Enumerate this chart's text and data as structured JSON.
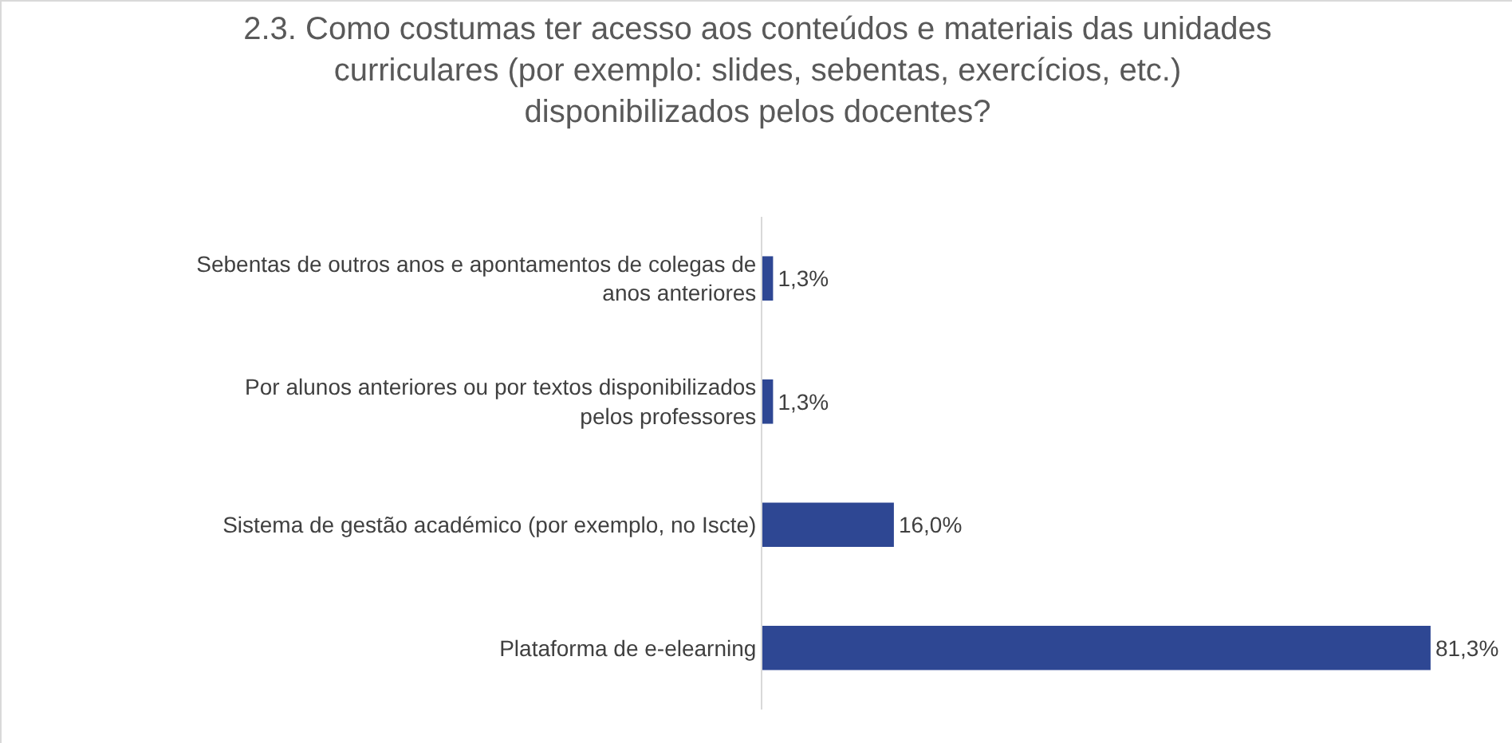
{
  "chart_data": {
    "type": "bar",
    "orientation": "horizontal",
    "title": "2.3. Como costumas ter acesso aos conteúdos e materiais das unidades curriculares (por exemplo: slides, sebentas, exercícios, etc.) disponibilizados pelos docentes?",
    "categories": [
      "Sebentas de outros anos e apontamentos de colegas de anos anteriores",
      "Por alunos anteriores ou por textos disponibilizados pelos professores",
      "Sistema de gestão académico (por exemplo, no Iscte)",
      "Plataforma de e-elearning"
    ],
    "values": [
      1.3,
      1.3,
      16.0,
      81.3
    ],
    "value_labels": [
      "1,3%",
      "1,3%",
      "16,0%",
      "81,3%"
    ],
    "color": "#2e4793",
    "tick_labels": "y"
  }
}
